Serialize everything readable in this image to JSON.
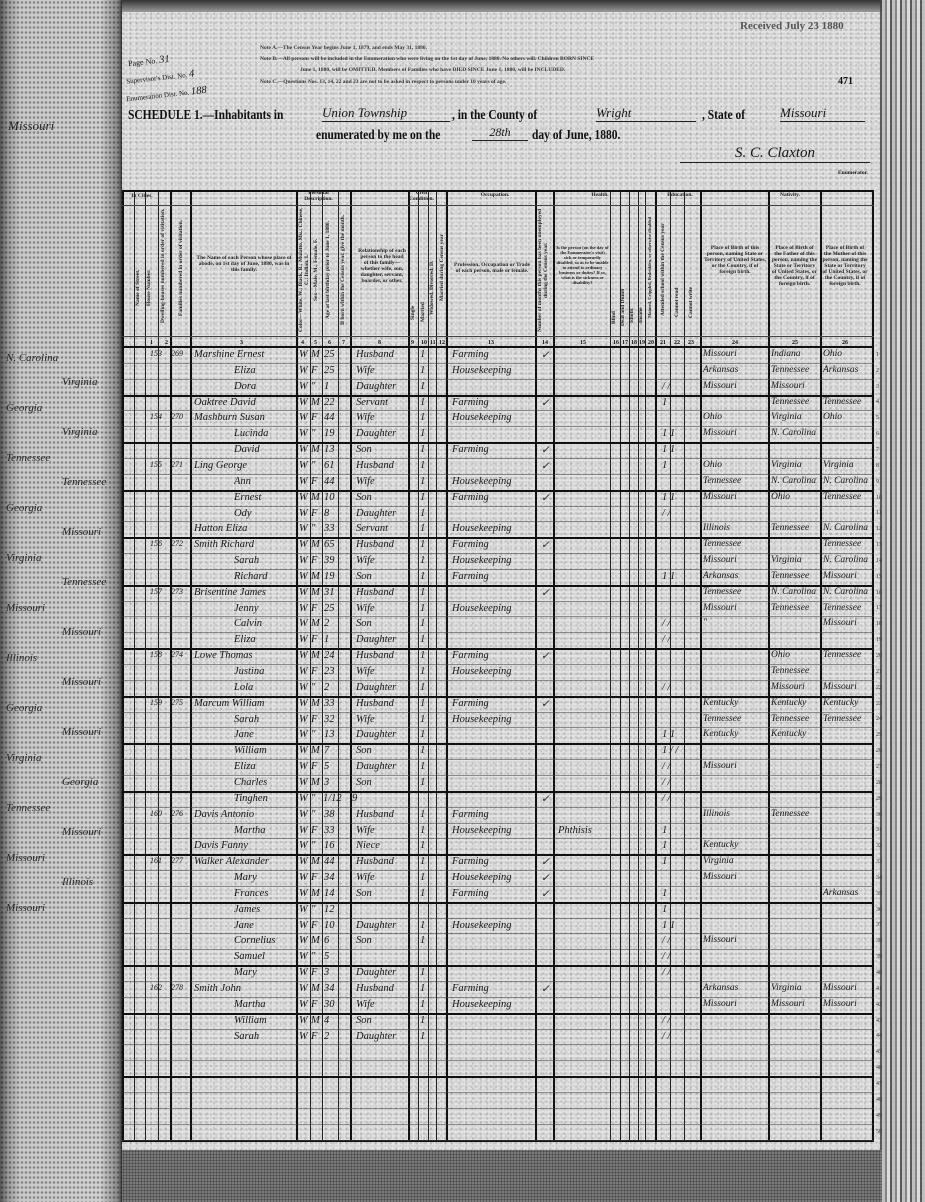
{
  "header": {
    "page_no_label": "Page No.",
    "page_no": "31",
    "supervisor_label": "Supervisor's Dist. No.",
    "supervisor_no": "4",
    "enumeration_label": "Enumeration Dist. No.",
    "enumeration_no": "188",
    "note_a": "Note A.—The Census Year begins June 1, 1879, and ends May 31, 1880.",
    "note_b": "Note B.—All persons will be included in the Enumeration who were living on the 1st day of June, 1880. No others will. Children BORN SINCE",
    "note_b2": "June 1, 1880, will be OMITTED. Members of Families who have DIED SINCE June 1, 1880, will be INCLUDED.",
    "note_c": "Note C.—Questions Nos. 13, 14, 22 and 23 are not to be asked in respect to persons under 10 years of age.",
    "received_stamp": "Received July 23 1880",
    "sheet_number": "471",
    "schedule_label": "SCHEDULE 1.—Inhabitants in",
    "township": "Union Township",
    "county_label": ", in the County of",
    "county": "Wright",
    "state_label": ", State of",
    "state": "Missouri",
    "enumerated_label": "enumerated by me on the",
    "day": "28th",
    "month_year_label": "day of June, 1880.",
    "enumerator_signature": "S. C. Claxton",
    "enumerator_label": "Enumerator."
  },
  "columns": {
    "in_cities": "In Cities.",
    "street": "Name of Street.",
    "house": "House Number.",
    "dwelling": "Dwelling-houses numbered in order of visitation.",
    "family": "Families numbered in order of visitation.",
    "name": "The Name of each Person whose place of abode, on 1st day of June, 1880, was in this family.",
    "personal": "Personal Description.",
    "color": "Color—White, W.; Black, B.; Mulatto, Mu.; Chinese, C.; Indian, I.",
    "sex": "Sex—Male, M.; Female, F.",
    "age": "Age at last birthday prior to June 1, 1880.",
    "month_born": "If born within the Census year, give the month.",
    "relationship": "Relationship of each person to the head of this family—whether wife, son, daughter, servant, boarder, or other.",
    "civil": "Civil Condition.",
    "single": "Single",
    "married": "Married",
    "widowed": "Widowed, Divorced, D.",
    "married_year": "Married during Census year",
    "occupation_group": "Occupation.",
    "occupation": "Profession, Occupation or Trade of each person, male or female.",
    "unemployed": "Number of months this person has been unemployed during the Census year.",
    "health": "Health.",
    "sickness": "Is the person (on the day of the Enumerator's visit) sick or temporarily disabled, so as to be unable to attend to ordinary business or duties? If so, what is the sickness or disability?",
    "blind": "Blind",
    "deaf": "Deaf and Dumb",
    "idiotic": "Idiotic",
    "insane": "Insane",
    "maimed": "Maimed, Crippled, Bedridden, or otherwise disabled",
    "education": "Education.",
    "school": "Attended school within the Census year",
    "cannot_read": "Cannot read",
    "cannot_write": "Cannot write",
    "nativity": "Nativity.",
    "birthplace": "Place of Birth of this person, naming State or Territory of United States, or the Country, if of foreign birth.",
    "father_birthplace": "Place of Birth of the Father of this person, naming the State or Territory of United States, or the Country, if of foreign birth.",
    "mother_birthplace": "Place of Birth of the Mother of this person, naming the State or Territory of United States, or the Country, if of foreign birth.",
    "numbers": [
      "1",
      "2",
      "3",
      "4",
      "5",
      "6",
      "7",
      "8",
      "9",
      "10",
      "11",
      "12",
      "13",
      "14",
      "15",
      "16",
      "17",
      "18",
      "19",
      "20",
      "21",
      "22",
      "23",
      "24",
      "25",
      "26"
    ]
  },
  "rows": [
    {
      "dwelling": "153",
      "family": "269",
      "name": "Marshine Ernest",
      "color": "W",
      "sex": "M",
      "age": "25",
      "rel": "Husband",
      "civil": "1",
      "occ": "Farming",
      "unemp": "✓",
      "edu": "",
      "birth": "Missouri",
      "father": "Indiana",
      "mother": "Ohio"
    },
    {
      "dwelling": "",
      "family": "",
      "name": "Eliza",
      "color": "W",
      "sex": "F",
      "age": "25",
      "rel": "Wife",
      "civil": "1",
      "occ": "Housekeeping",
      "unemp": "",
      "edu": "",
      "birth": "Arkansas",
      "father": "Tennessee",
      "mother": "Arkansas"
    },
    {
      "dwelling": "",
      "family": "",
      "name": "Dora",
      "color": "W",
      "sex": "\"",
      "age": "1",
      "rel": "Daughter",
      "civil": "1",
      "occ": "",
      "unemp": "",
      "edu": "/ /",
      "birth": "Missouri",
      "father": "Missouri",
      "mother": ""
    },
    {
      "dwelling": "",
      "family": "",
      "name": "Oaktree David",
      "color": "W",
      "sex": "M",
      "age": "22",
      "rel": "Servant",
      "civil": "1",
      "occ": "Farming",
      "unemp": "✓",
      "edu": "1",
      "birth": "",
      "father": "Tennessee",
      "mother": "Tennessee"
    },
    {
      "dwelling": "154",
      "family": "270",
      "name": "Mashburn Susan",
      "color": "W",
      "sex": "F",
      "age": "44",
      "rel": "Wife",
      "civil": "1",
      "occ": "Housekeeping",
      "unemp": "",
      "edu": "",
      "birth": "Ohio",
      "father": "Virginia",
      "mother": "Ohio"
    },
    {
      "dwelling": "",
      "family": "",
      "name": "Lucinda",
      "color": "W",
      "sex": "\"",
      "age": "19",
      "rel": "Daughter",
      "civil": "1",
      "occ": "",
      "unemp": "",
      "edu": "1 1",
      "birth": "Missouri",
      "father": "N. Carolina",
      "mother": ""
    },
    {
      "dwelling": "",
      "family": "",
      "name": "David",
      "color": "W",
      "sex": "M",
      "age": "13",
      "rel": "Son",
      "civil": "1",
      "occ": "Farming",
      "unemp": "✓",
      "edu": "1 1",
      "birth": "",
      "father": "",
      "mother": ""
    },
    {
      "dwelling": "155",
      "family": "271",
      "name": "Ling George",
      "color": "W",
      "sex": "\"",
      "age": "61",
      "rel": "Husband",
      "civil": "1",
      "occ": "",
      "unemp": "✓",
      "edu": "1",
      "birth": "Ohio",
      "father": "Virginia",
      "mother": "Virginia"
    },
    {
      "dwelling": "",
      "family": "",
      "name": "Ann",
      "color": "W",
      "sex": "F",
      "age": "44",
      "rel": "Wife",
      "civil": "1",
      "occ": "Housekeeping",
      "unemp": "",
      "edu": "",
      "birth": "Tennessee",
      "father": "N. Carolina",
      "mother": "N. Carolina"
    },
    {
      "dwelling": "",
      "family": "",
      "name": "Ernest",
      "color": "W",
      "sex": "M",
      "age": "10",
      "rel": "Son",
      "civil": "1",
      "occ": "Farming",
      "unemp": "✓",
      "edu": "1 1",
      "birth": "Missouri",
      "father": "Ohio",
      "mother": "Tennessee"
    },
    {
      "dwelling": "",
      "family": "",
      "name": "Ody",
      "color": "W",
      "sex": "F",
      "age": "8",
      "rel": "Daughter",
      "civil": "1",
      "occ": "",
      "unemp": "",
      "edu": "/ /",
      "birth": "",
      "father": "",
      "mother": ""
    },
    {
      "dwelling": "",
      "family": "",
      "name": "Hatton Eliza",
      "color": "W",
      "sex": "\"",
      "age": "33",
      "rel": "Servant",
      "civil": "1",
      "occ": "Housekeeping",
      "unemp": "",
      "edu": "",
      "birth": "Illinois",
      "father": "Tennessee",
      "mother": "N. Carolina"
    },
    {
      "dwelling": "156",
      "family": "272",
      "name": "Smith Richard",
      "color": "W",
      "sex": "M",
      "age": "65",
      "rel": "Husband",
      "civil": "1",
      "occ": "Farming",
      "unemp": "✓",
      "edu": "",
      "birth": "Tennessee",
      "father": "",
      "mother": "Tennessee"
    },
    {
      "dwelling": "",
      "family": "",
      "name": "Sarah",
      "color": "W",
      "sex": "F",
      "age": "39",
      "rel": "Wife",
      "civil": "1",
      "occ": "Housekeeping",
      "unemp": "",
      "edu": "",
      "birth": "Missouri",
      "father": "Virginia",
      "mother": "N. Carolina"
    },
    {
      "dwelling": "",
      "family": "",
      "name": "Richard",
      "color": "W",
      "sex": "M",
      "age": "19",
      "rel": "Son",
      "civil": "1",
      "occ": "Farming",
      "unemp": "",
      "edu": "1 1",
      "birth": "Arkansas",
      "father": "Tennessee",
      "mother": "Missouri"
    },
    {
      "dwelling": "157",
      "family": "273",
      "name": "Brisentine James",
      "color": "W",
      "sex": "M",
      "age": "31",
      "rel": "Husband",
      "civil": "1",
      "occ": "",
      "unemp": "✓",
      "edu": "",
      "birth": "Tennessee",
      "father": "N. Carolina",
      "mother": "N. Carolina"
    },
    {
      "dwelling": "",
      "family": "",
      "name": "Jenny",
      "color": "W",
      "sex": "F",
      "age": "25",
      "rel": "Wife",
      "civil": "1",
      "occ": "Housekeeping",
      "unemp": "",
      "edu": "",
      "birth": "Missouri",
      "father": "Tennessee",
      "mother": "Tennessee"
    },
    {
      "dwelling": "",
      "family": "",
      "name": "Calvin",
      "color": "W",
      "sex": "M",
      "age": "2",
      "rel": "Son",
      "civil": "1",
      "occ": "",
      "unemp": "",
      "edu": "/ /",
      "birth": "\"",
      "father": "",
      "mother": "Missouri"
    },
    {
      "dwelling": "",
      "family": "",
      "name": "Eliza",
      "color": "W",
      "sex": "F",
      "age": "1",
      "rel": "Daughter",
      "civil": "1",
      "occ": "",
      "unemp": "",
      "edu": "/ /",
      "birth": "",
      "father": "",
      "mother": ""
    },
    {
      "dwelling": "158",
      "family": "274",
      "name": "Lowe Thomas",
      "color": "W",
      "sex": "M",
      "age": "24",
      "rel": "Husband",
      "civil": "1",
      "occ": "Farming",
      "unemp": "✓",
      "edu": "",
      "birth": "",
      "father": "Ohio",
      "mother": "Tennessee"
    },
    {
      "dwelling": "",
      "family": "",
      "name": "Justina",
      "color": "W",
      "sex": "F",
      "age": "23",
      "rel": "Wife",
      "civil": "1",
      "occ": "Housekeeping",
      "unemp": "",
      "edu": "",
      "birth": "",
      "father": "Tennessee",
      "mother": ""
    },
    {
      "dwelling": "",
      "family": "",
      "name": "Lola",
      "color": "W",
      "sex": "\"",
      "age": "2",
      "rel": "Daughter",
      "civil": "1",
      "occ": "",
      "unemp": "",
      "edu": "/ /",
      "birth": "",
      "father": "Missouri",
      "mother": "Missouri"
    },
    {
      "dwelling": "159",
      "family": "275",
      "name": "Marcum William",
      "color": "W",
      "sex": "M",
      "age": "33",
      "rel": "Husband",
      "civil": "1",
      "occ": "Farming",
      "unemp": "✓",
      "edu": "",
      "birth": "Kentucky",
      "father": "Kentucky",
      "mother": "Kentucky"
    },
    {
      "dwelling": "",
      "family": "",
      "name": "Sarah",
      "color": "W",
      "sex": "F",
      "age": "32",
      "rel": "Wife",
      "civil": "1",
      "occ": "Housekeeping",
      "unemp": "",
      "edu": "",
      "birth": "Tennessee",
      "father": "Tennessee",
      "mother": "Tennessee"
    },
    {
      "dwelling": "",
      "family": "",
      "name": "Jane",
      "color": "W",
      "sex": "\"",
      "age": "13",
      "rel": "Daughter",
      "civil": "1",
      "occ": "",
      "unemp": "",
      "edu": "1 1",
      "birth": "Kentucky",
      "father": "Kentucky",
      "mother": ""
    },
    {
      "dwelling": "",
      "family": "",
      "name": "William",
      "color": "W",
      "sex": "M",
      "age": "7",
      "rel": "Son",
      "civil": "1",
      "occ": "",
      "unemp": "",
      "edu": "1 / /",
      "birth": "",
      "father": "",
      "mother": ""
    },
    {
      "dwelling": "",
      "family": "",
      "name": "Eliza",
      "color": "W",
      "sex": "F",
      "age": "5",
      "rel": "Daughter",
      "civil": "1",
      "occ": "",
      "unemp": "",
      "edu": "/ /",
      "birth": "Missouri",
      "father": "",
      "mother": ""
    },
    {
      "dwelling": "",
      "family": "",
      "name": "Charles",
      "color": "W",
      "sex": "M",
      "age": "3",
      "rel": "Son",
      "civil": "1",
      "occ": "",
      "unemp": "",
      "edu": "/ /",
      "birth": "",
      "father": "",
      "mother": ""
    },
    {
      "dwelling": "",
      "family": "",
      "name": "Tinghen",
      "color": "W",
      "sex": "\"",
      "age": "1/12",
      "month": "9",
      "rel": "",
      "civil": "",
      "occ": "",
      "unemp": "✓",
      "edu": "/ /",
      "birth": "",
      "father": "",
      "mother": ""
    },
    {
      "dwelling": "160",
      "family": "276",
      "name": "Davis Antonio",
      "color": "W",
      "sex": "\"",
      "age": "38",
      "rel": "Husband",
      "civil": "1",
      "occ": "Farming",
      "unemp": "",
      "edu": "",
      "birth": "Illinois",
      "father": "Tennessee",
      "mother": ""
    },
    {
      "dwelling": "",
      "family": "",
      "name": "Martha",
      "color": "W",
      "sex": "F",
      "age": "33",
      "rel": "Wife",
      "civil": "1",
      "occ": "Housekeeping",
      "unemp": "",
      "sick": "Phthisis",
      "edu": "1",
      "birth": "",
      "father": "",
      "mother": ""
    },
    {
      "dwelling": "",
      "family": "",
      "name": "Davis Fanny",
      "color": "W",
      "sex": "\"",
      "age": "16",
      "rel": "Niece",
      "civil": "1",
      "occ": "",
      "unemp": "",
      "edu": "1",
      "birth": "Kentucky",
      "father": "",
      "mother": ""
    },
    {
      "dwelling": "161",
      "family": "277",
      "name": "Walker Alexander",
      "color": "W",
      "sex": "M",
      "age": "44",
      "rel": "Husband",
      "civil": "1",
      "occ": "Farming",
      "unemp": "✓",
      "edu": "1",
      "birth": "Virginia",
      "father": "",
      "mother": ""
    },
    {
      "dwelling": "",
      "family": "",
      "name": "Mary",
      "color": "W",
      "sex": "F",
      "age": "34",
      "rel": "Wife",
      "civil": "1",
      "occ": "Housekeeping",
      "unemp": "✓",
      "edu": "",
      "birth": "Missouri",
      "father": "",
      "mother": ""
    },
    {
      "dwelling": "",
      "family": "",
      "name": "Frances",
      "color": "W",
      "sex": "M",
      "age": "14",
      "rel": "Son",
      "civil": "1",
      "occ": "Farming",
      "unemp": "✓",
      "edu": "1",
      "birth": "",
      "father": "",
      "mother": "Arkansas"
    },
    {
      "dwelling": "",
      "family": "",
      "name": "James",
      "color": "W",
      "sex": "\"",
      "age": "12",
      "rel": "",
      "civil": "",
      "occ": "",
      "unemp": "",
      "edu": "1",
      "birth": "",
      "father": "",
      "mother": ""
    },
    {
      "dwelling": "",
      "family": "",
      "name": "Jane",
      "color": "W",
      "sex": "F",
      "age": "10",
      "rel": "Daughter",
      "civil": "1",
      "occ": "Housekeeping",
      "unemp": "",
      "edu": "1 1",
      "birth": "",
      "father": "",
      "mother": ""
    },
    {
      "dwelling": "",
      "family": "",
      "name": "Cornelius",
      "color": "W",
      "sex": "M",
      "age": "6",
      "rel": "Son",
      "civil": "1",
      "occ": "",
      "unemp": "",
      "edu": "/ /",
      "birth": "Missouri",
      "father": "",
      "mother": ""
    },
    {
      "dwelling": "",
      "family": "",
      "name": "Samuel",
      "color": "W",
      "sex": "\"",
      "age": "5",
      "rel": "",
      "civil": "",
      "occ": "",
      "unemp": "",
      "edu": "/ /",
      "birth": "",
      "father": "",
      "mother": ""
    },
    {
      "dwelling": "",
      "family": "",
      "name": "Mary",
      "color": "W",
      "sex": "F",
      "age": "3",
      "rel": "Daughter",
      "civil": "1",
      "occ": "",
      "unemp": "",
      "edu": "/ /",
      "birth": "",
      "father": "",
      "mother": ""
    },
    {
      "dwelling": "162",
      "family": "278",
      "name": "Smith John",
      "color": "W",
      "sex": "M",
      "age": "34",
      "rel": "Husband",
      "civil": "1",
      "occ": "Farming",
      "unemp": "✓",
      "edu": "",
      "birth": "Arkansas",
      "father": "Virginia",
      "mother": "Missouri"
    },
    {
      "dwelling": "",
      "family": "",
      "name": "Martha",
      "color": "W",
      "sex": "F",
      "age": "30",
      "rel": "Wife",
      "civil": "1",
      "occ": "Housekeeping",
      "unemp": "",
      "edu": "",
      "birth": "Missouri",
      "father": "Missouri",
      "mother": "Missouri"
    },
    {
      "dwelling": "",
      "family": "",
      "name": "William",
      "color": "W",
      "sex": "M",
      "age": "4",
      "rel": "Son",
      "civil": "1",
      "occ": "",
      "unemp": "",
      "edu": "/ /",
      "birth": "",
      "father": "",
      "mother": ""
    },
    {
      "dwelling": "",
      "family": "",
      "name": "Sarah",
      "color": "W",
      "sex": "F",
      "age": "2",
      "rel": "Daughter",
      "civil": "1",
      "occ": "",
      "unemp": "",
      "edu": "/ /",
      "birth": "",
      "father": "",
      "mother": ""
    }
  ],
  "adjacent_page": {
    "state": "Missouri",
    "entries": [
      "N. Carolina",
      "Virginia",
      "Georgia",
      "Virginia",
      "Tennessee",
      "Tennessee",
      "Georgia",
      "Missouri",
      "Virginia",
      "Tennessee",
      "Missouri",
      "Missouri",
      "Illinois",
      "Missouri",
      "Georgia",
      "Missouri",
      "Virginia",
      "Georgia",
      "Tennessee",
      "Missouri",
      "Missouri",
      "Illinois",
      "Missouri"
    ]
  }
}
